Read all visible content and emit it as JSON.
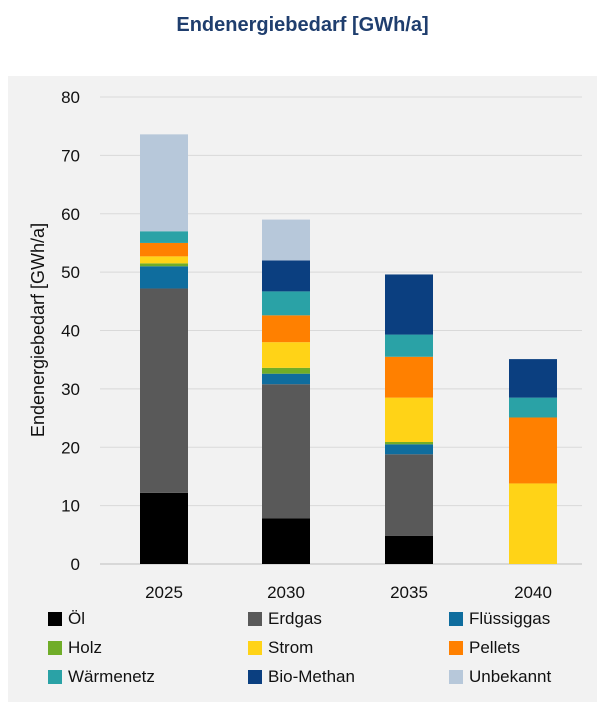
{
  "chart_data": {
    "type": "bar",
    "stacked": true,
    "title": "Endenergiebedarf [GWh/a]",
    "ylabel": "Endenergiebedarf [GWh/a]",
    "xlabel": "",
    "ylim": [
      0,
      80
    ],
    "yticks": [
      0,
      10,
      20,
      30,
      40,
      50,
      60,
      70,
      80
    ],
    "grid": true,
    "legend_position": "bottom",
    "categories": [
      "2025",
      "2030",
      "2035",
      "2040"
    ],
    "series": [
      {
        "name": "Öl",
        "color": "#000000",
        "values": [
          12.2,
          7.8,
          4.8,
          0
        ]
      },
      {
        "name": "Erdgas",
        "color": "#595959",
        "values": [
          35.0,
          23.0,
          14.0,
          0
        ]
      },
      {
        "name": "Flüssiggas",
        "color": "#0f6d9e",
        "values": [
          3.8,
          1.8,
          1.7,
          0
        ]
      },
      {
        "name": "Holz",
        "color": "#70ad29",
        "values": [
          0.5,
          1.0,
          0.4,
          0
        ]
      },
      {
        "name": "Strom",
        "color": "#ffd317",
        "values": [
          1.2,
          4.4,
          7.6,
          13.8
        ]
      },
      {
        "name": "Pellets",
        "color": "#ff8000",
        "values": [
          2.3,
          4.6,
          7.0,
          11.3
        ]
      },
      {
        "name": "Wärmenetz",
        "color": "#2aa2a6",
        "values": [
          2.0,
          4.1,
          3.8,
          3.4
        ]
      },
      {
        "name": "Bio-Methan",
        "color": "#0b3f80",
        "values": [
          0,
          5.3,
          10.3,
          6.6
        ]
      },
      {
        "name": "Unbekannt",
        "color": "#b7c8da",
        "values": [
          16.6,
          7.0,
          0,
          0
        ]
      }
    ]
  }
}
